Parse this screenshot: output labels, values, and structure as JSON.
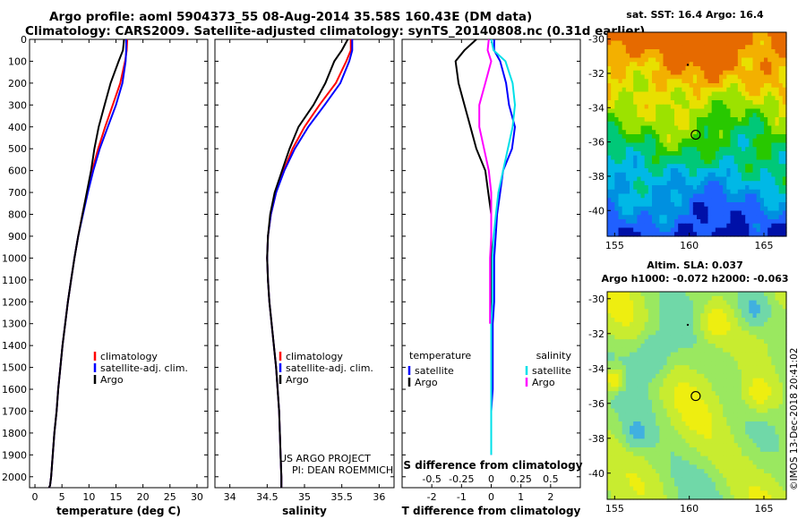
{
  "header": {
    "line1": "Argo profile: aoml 5904373_55 08-Aug-2014 35.58S 160.43E (DM data)",
    "line2": "Climatology: CARS2009. Satellite-adjusted climatology: synTS_20140808.nc (0.31d earlier)"
  },
  "colors": {
    "climatology": "#ff0000",
    "satellite": "#0000ff",
    "argo": "#000000",
    "sat_salinity": "#00e0e8",
    "argo_salinity": "#ff00ff"
  },
  "chart_data": [
    {
      "type": "line",
      "xlabel": "temperature (deg C)",
      "ylabel": "",
      "xlim": [
        -1,
        32
      ],
      "ylim": [
        2050,
        0
      ],
      "xticks": [
        0,
        5,
        10,
        15,
        20,
        25,
        30
      ],
      "yticks": [
        0,
        100,
        200,
        300,
        400,
        500,
        600,
        700,
        800,
        900,
        1000,
        1100,
        1200,
        1300,
        1400,
        1500,
        1600,
        1700,
        1800,
        1900,
        2000
      ],
      "legend": [
        "climatology",
        "satellite-adj. clim.",
        "Argo"
      ],
      "legend_position": "bottom-right",
      "series": [
        {
          "name": "climatology",
          "color": "#ff0000",
          "x": [
            17.1,
            17.0,
            16.7,
            15.8,
            14.4,
            13.0,
            11.7,
            10.6,
            9.7,
            8.8,
            8.0,
            7.3,
            6.7,
            6.1,
            5.6,
            5.1,
            4.7,
            4.3,
            4.0,
            3.6,
            3.3,
            3.0,
            2.8,
            2.6
          ],
          "y": [
            0,
            50,
            100,
            200,
            300,
            400,
            500,
            600,
            700,
            800,
            900,
            1000,
            1100,
            1200,
            1300,
            1400,
            1500,
            1600,
            1700,
            1800,
            1900,
            2000,
            2040,
            2050
          ]
        },
        {
          "name": "satellite-adj. clim.",
          "color": "#0000ff",
          "x": [
            16.9,
            16.9,
            16.8,
            16.2,
            15.0,
            13.5,
            12.0,
            10.8,
            9.8,
            8.9,
            8.0,
            7.3,
            6.7,
            6.1,
            5.6,
            5.1,
            4.7,
            4.3,
            4.0,
            3.6,
            3.3,
            3.0,
            2.8,
            2.6
          ],
          "y": [
            0,
            50,
            100,
            200,
            300,
            400,
            500,
            600,
            700,
            800,
            900,
            1000,
            1100,
            1200,
            1300,
            1400,
            1500,
            1600,
            1700,
            1800,
            1900,
            2000,
            2040,
            2050
          ]
        },
        {
          "name": "Argo",
          "color": "#000000",
          "x": [
            16.5,
            16.3,
            15.5,
            14.0,
            12.9,
            11.8,
            11.0,
            10.4,
            9.6,
            8.8,
            8.0,
            7.3,
            6.7,
            6.1,
            5.6,
            5.1,
            4.7,
            4.3,
            4.0,
            3.6,
            3.3,
            3.0,
            2.8,
            2.6
          ],
          "y": [
            0,
            50,
            100,
            200,
            300,
            400,
            500,
            600,
            700,
            800,
            900,
            1000,
            1100,
            1200,
            1300,
            1400,
            1500,
            1600,
            1700,
            1800,
            1900,
            2000,
            2040,
            2050
          ]
        }
      ]
    },
    {
      "type": "line",
      "xlabel": "salinity",
      "xlim": [
        33.8,
        36.2
      ],
      "ylim": [
        2050,
        0
      ],
      "xticks": [
        34,
        34.5,
        35,
        35.5,
        36
      ],
      "legend": [
        "climatology",
        "satellite-adj. clim.",
        "Argo"
      ],
      "legend_position": "bottom-right",
      "series": [
        {
          "name": "climatology",
          "color": "#ff0000",
          "x": [
            35.62,
            35.62,
            35.56,
            35.42,
            35.2,
            35.0,
            34.84,
            34.72,
            34.62,
            34.55,
            34.51,
            34.5,
            34.51,
            34.53,
            34.56,
            34.59,
            34.62,
            34.64,
            34.66,
            34.67,
            34.68,
            34.69,
            34.69
          ],
          "y": [
            0,
            50,
            100,
            200,
            300,
            400,
            500,
            600,
            700,
            800,
            900,
            1000,
            1100,
            1200,
            1300,
            1400,
            1500,
            1600,
            1700,
            1800,
            1900,
            2000,
            2050
          ]
        },
        {
          "name": "satellite-adj. clim.",
          "color": "#0000ff",
          "x": [
            35.64,
            35.64,
            35.6,
            35.48,
            35.27,
            35.05,
            34.87,
            34.73,
            34.62,
            34.55,
            34.51,
            34.5,
            34.51,
            34.53,
            34.56,
            34.59,
            34.62,
            34.64,
            34.66,
            34.67,
            34.68,
            34.69,
            34.69
          ],
          "y": [
            0,
            50,
            100,
            200,
            300,
            400,
            500,
            600,
            700,
            800,
            900,
            1000,
            1100,
            1200,
            1300,
            1400,
            1500,
            1600,
            1700,
            1800,
            1900,
            2000,
            2050
          ]
        },
        {
          "name": "Argo",
          "color": "#000000",
          "x": [
            35.58,
            35.5,
            35.4,
            35.28,
            35.12,
            34.92,
            34.8,
            34.7,
            34.6,
            34.54,
            34.51,
            34.5,
            34.51,
            34.53,
            34.56,
            34.59,
            34.62,
            34.64,
            34.66,
            34.67,
            34.68,
            34.69,
            34.69
          ],
          "y": [
            0,
            50,
            100,
            200,
            300,
            400,
            500,
            600,
            700,
            800,
            900,
            1000,
            1100,
            1200,
            1300,
            1400,
            1500,
            1600,
            1700,
            1800,
            1900,
            2000,
            2050
          ]
        }
      ],
      "annotations": [
        "US ARGO PROJECT",
        "PI: DEAN ROEMMICH"
      ]
    },
    {
      "type": "line",
      "xlabel": "T difference from climatology",
      "xlabel_top": "S difference from climatology",
      "xlim": [
        -3,
        3
      ],
      "ylim": [
        2050,
        0
      ],
      "xticks": [
        -2,
        -1,
        0,
        1,
        2
      ],
      "xticks_top": [
        -0.5,
        -0.25,
        0,
        0.25,
        0.5
      ],
      "legend_groups": [
        {
          "title": "temperature",
          "entries": [
            "satellite",
            "Argo"
          ]
        },
        {
          "title": "salinity",
          "entries": [
            "satellite",
            "Argo"
          ]
        }
      ],
      "series": [
        {
          "name": "T satellite",
          "color": "#0000ff",
          "x": [
            0.1,
            0.1,
            0.3,
            0.5,
            0.6,
            0.8,
            0.7,
            0.4,
            0.3,
            0.2,
            0.15,
            0.1,
            0.1,
            0.1,
            0.05,
            0.05,
            0.05,
            0.05,
            0.0,
            0.0,
            0.0
          ],
          "y": [
            0,
            50,
            100,
            200,
            300,
            400,
            500,
            600,
            700,
            800,
            900,
            1000,
            1100,
            1200,
            1300,
            1400,
            1500,
            1600,
            1700,
            1800,
            1900
          ]
        },
        {
          "name": "T Argo",
          "color": "#000000",
          "x": [
            -0.5,
            -0.9,
            -1.2,
            -1.1,
            -0.9,
            -0.7,
            -0.5,
            -0.2,
            -0.1,
            0.0,
            0.0,
            0.0,
            0.0,
            0.0,
            0.0
          ],
          "y": [
            0,
            50,
            100,
            200,
            300,
            400,
            500,
            600,
            700,
            800,
            900,
            1000,
            1100,
            1200,
            1300
          ]
        },
        {
          "name": "S satellite",
          "color": "#00e0e8",
          "x": [
            0.0,
            0.02,
            0.12,
            0.18,
            0.2,
            0.18,
            0.14,
            0.1,
            0.06,
            0.04,
            0.02,
            0.01,
            0.01,
            0.01,
            0.0,
            0.0,
            0.0,
            0.0,
            0.0,
            0.0,
            0.0
          ],
          "y": [
            0,
            50,
            100,
            200,
            300,
            400,
            500,
            600,
            700,
            800,
            900,
            1000,
            1100,
            1200,
            1300,
            1400,
            1500,
            1600,
            1700,
            1800,
            1900
          ]
        },
        {
          "name": "S Argo",
          "color": "#ff00ff",
          "x": [
            -0.02,
            -0.03,
            0.0,
            -0.05,
            -0.1,
            -0.1,
            -0.06,
            -0.02,
            0.0,
            0.0,
            0.0,
            -0.01,
            -0.01,
            -0.01
          ],
          "y": [
            0,
            50,
            100,
            200,
            300,
            400,
            500,
            600,
            700,
            800,
            900,
            1000,
            1100,
            1300
          ]
        }
      ]
    },
    {
      "type": "heatmap",
      "title": "sat. SST: 16.4 Argo: 16.4",
      "xlim": [
        154.5,
        166.5
      ],
      "ylim": [
        -41.5,
        -29.6
      ],
      "xticks": [
        155,
        160,
        165
      ],
      "yticks": [
        -30,
        -32,
        -34,
        -36,
        -38,
        -40
      ],
      "marker": {
        "lon": 160.43,
        "lat": -35.58
      },
      "palette": [
        "#e66a00",
        "#f3b000",
        "#e8e000",
        "#9ce200",
        "#28c800",
        "#00c878",
        "#00b8e6",
        "#0090e0",
        "#2060ff",
        "#0010a8"
      ]
    },
    {
      "type": "heatmap",
      "title": "Altim. SLA: 0.037",
      "subtitle": "Argo h1000: -0.072 h2000: -0.063",
      "xlim": [
        154.5,
        166.5
      ],
      "ylim": [
        -41.5,
        -29.6
      ],
      "xticks": [
        155,
        160,
        165
      ],
      "yticks": [
        -30,
        -32,
        -34,
        -36,
        -38,
        -40
      ],
      "marker": {
        "lon": 160.43,
        "lat": -35.58
      },
      "palette": [
        "#40b0e0",
        "#70d8a8",
        "#9ae860",
        "#c8ec30",
        "#eeee10",
        "#f0c020",
        "#e08020",
        "#b04010"
      ]
    }
  ],
  "credits": {
    "project": "US ARGO PROJECT",
    "pi": "PI: DEAN ROEMMICH",
    "stamp": "©IMOS 13-Dec-2018 20:41:02"
  }
}
